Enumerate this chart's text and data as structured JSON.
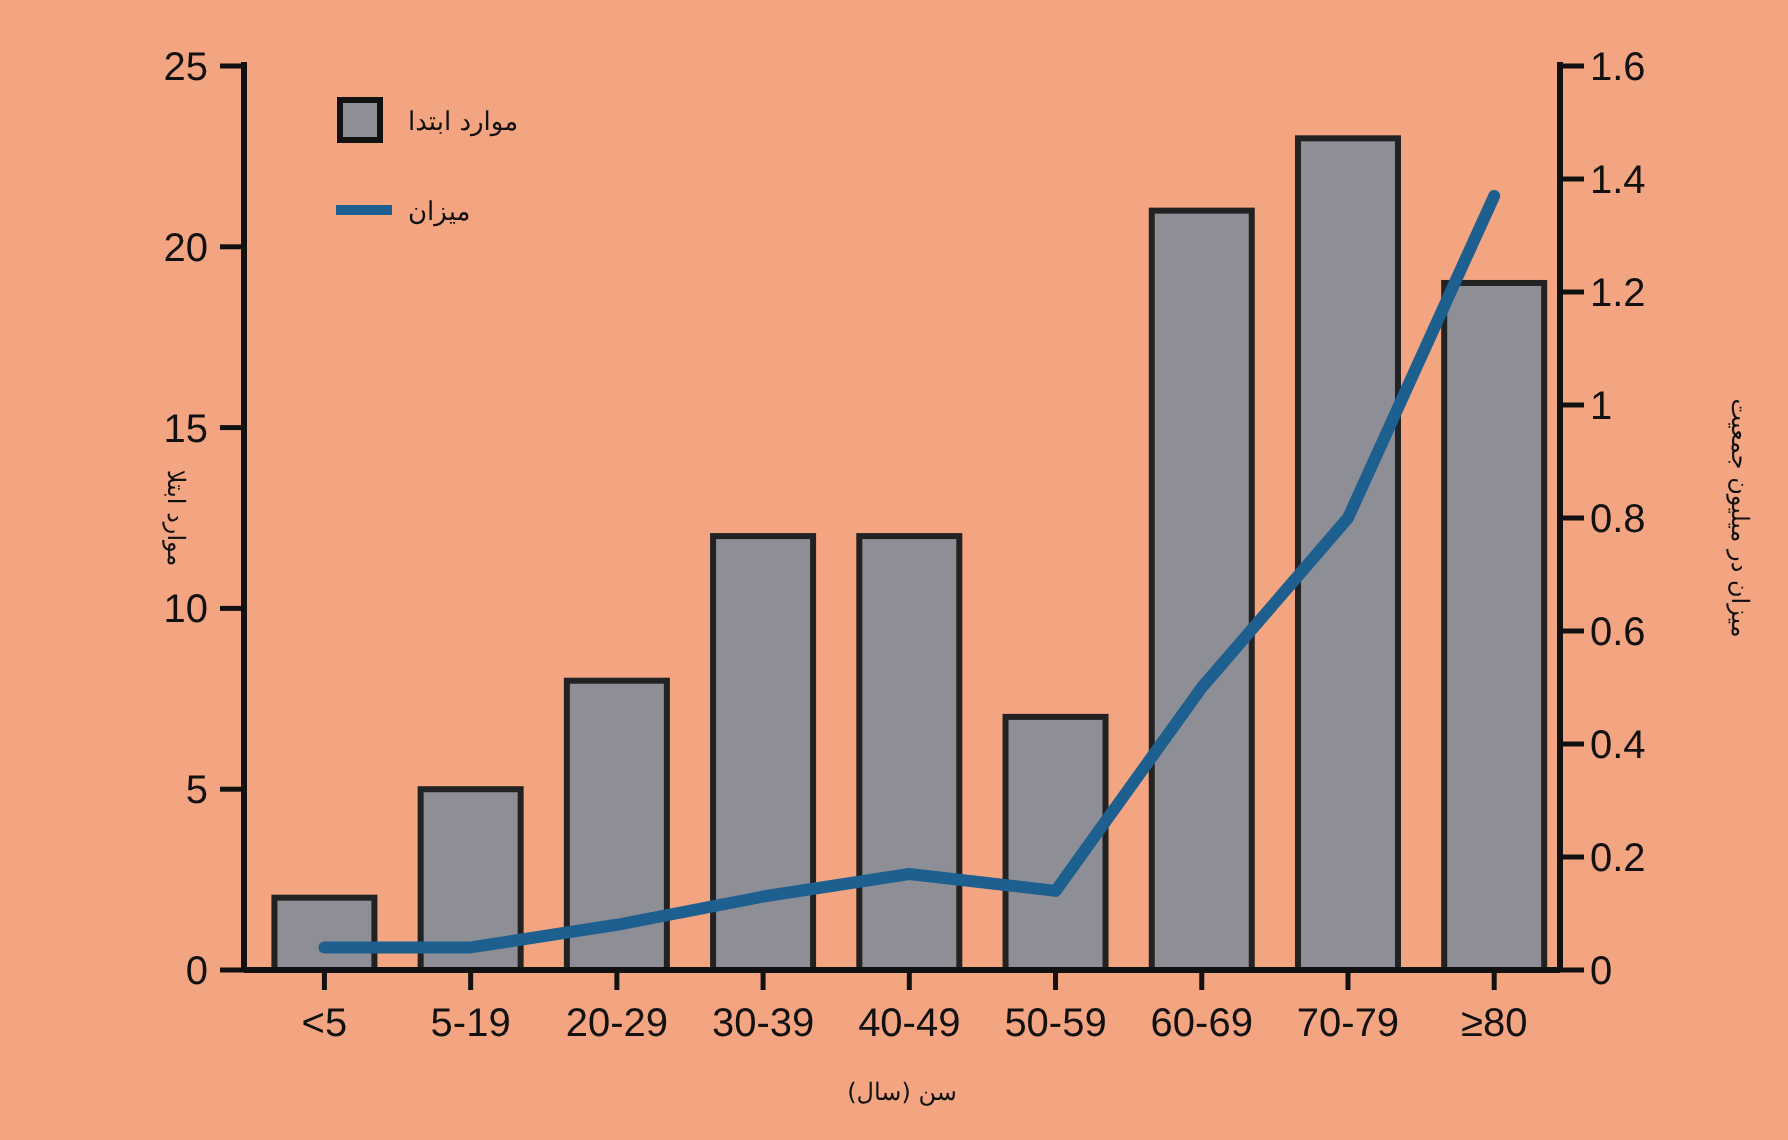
{
  "chart_data": {
    "type": "bar",
    "categories": [
      "<5",
      "5-19",
      "20-29",
      "30-39",
      "40-49",
      "50-59",
      "60-69",
      "70-79",
      "≥80"
    ],
    "series": [
      {
        "name": "موارد ابتدا",
        "color": "#8e8e96",
        "values": [
          2,
          5,
          8,
          12,
          12,
          7,
          21,
          23,
          19
        ]
      },
      {
        "name": "میزان",
        "type": "line",
        "axis": "y2",
        "color": "#1d5f8e",
        "values": [
          0.04,
          0.04,
          0.08,
          0.13,
          0.17,
          0.14,
          0.5,
          0.8,
          1.37
        ]
      }
    ],
    "xlabel": "سن (سال)",
    "ylabel": "موارد ابتلا",
    "y2label": "میزان در میلیون جمعیت",
    "ylim": [
      0,
      25
    ],
    "yticks": [
      0,
      5,
      10,
      15,
      20,
      25
    ],
    "y2lim": [
      0,
      1.6
    ],
    "y2ticks": [
      0,
      0.2,
      0.4,
      0.6,
      0.8,
      1,
      1.2,
      1.4,
      1.6
    ],
    "legend": "top left",
    "grid": false,
    "marker": "none"
  }
}
